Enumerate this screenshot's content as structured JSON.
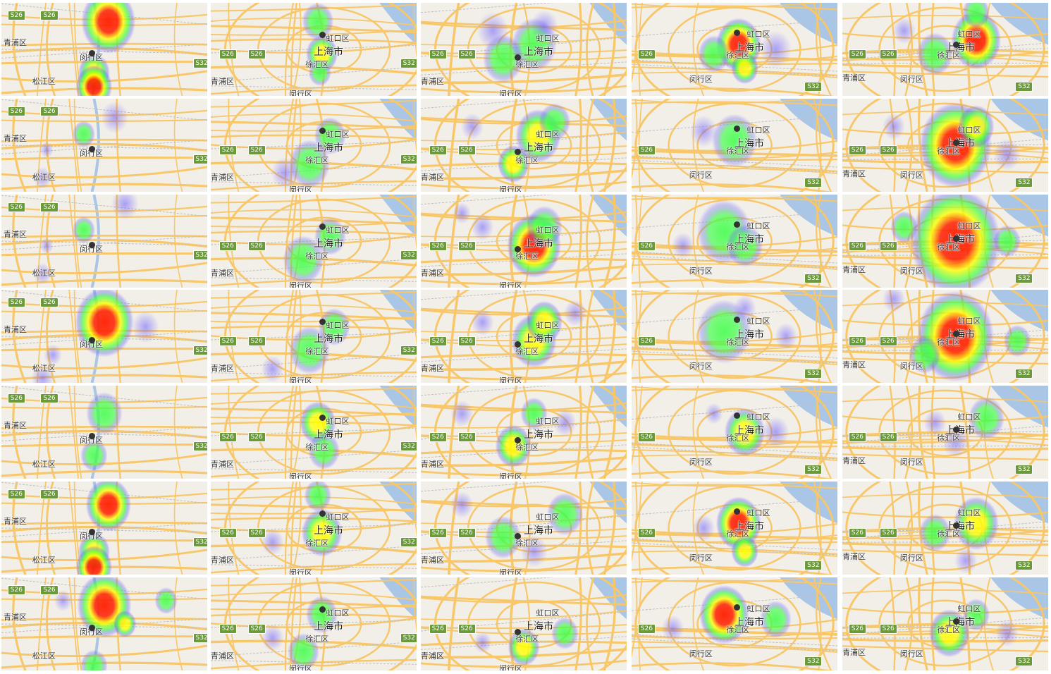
{
  "grid": {
    "rows": 7,
    "cols": 5
  },
  "labels": {
    "qingpu": "青浦区",
    "songjiang": "松江区",
    "minhang": "闵行区",
    "xuhui": "徐汇区",
    "hongkou": "虹口区",
    "shanghai": "上海市",
    "s26": "S26",
    "s32": "S32"
  },
  "colors": {
    "land": "#f2efe9",
    "water": "#aac6e6",
    "road": "#f7c76a",
    "heat_low": "#6b5cff",
    "heat_mid": "#3cff46",
    "heat_high": "#ffff00",
    "heat_peak": "#ff1e00"
  },
  "views": [
    {
      "map": "west",
      "labels": [
        "qingpu",
        "songjiang",
        "minhang",
        "s26",
        "s26",
        "s32"
      ],
      "note_marker": true
    },
    {
      "map": "center",
      "labels": [
        "qingpu",
        "minhang",
        "xuhui",
        "hongkou",
        "shanghai",
        "s26",
        "s26",
        "s32"
      ]
    },
    {
      "map": "center",
      "labels": [
        "qingpu",
        "minhang",
        "xuhui",
        "hongkou",
        "shanghai",
        "s26",
        "s26"
      ]
    },
    {
      "map": "east",
      "labels": [
        "minhang",
        "xuhui",
        "hongkou",
        "shanghai",
        "s26",
        "s32"
      ]
    },
    {
      "map": "east",
      "labels": [
        "qingpu",
        "minhang",
        "xuhui",
        "hongkou",
        "shanghai",
        "s26",
        "s26",
        "s32"
      ]
    }
  ],
  "cells": [
    {
      "row": 0,
      "col": 0,
      "view": 0,
      "marker": [
        0.44,
        0.54
      ],
      "blobs": [
        [
          0.52,
          0.2,
          0.12,
          0.9
        ],
        [
          0.45,
          0.75,
          0.07,
          0.6
        ],
        [
          0.45,
          0.9,
          0.08,
          0.85
        ]
      ]
    },
    {
      "row": 0,
      "col": 1,
      "view": 1,
      "marker": [
        0.54,
        0.34
      ],
      "blobs": [
        [
          0.52,
          0.2,
          0.07,
          0.5
        ],
        [
          0.54,
          0.55,
          0.07,
          0.7
        ],
        [
          0.53,
          0.75,
          0.05,
          0.4
        ]
      ]
    },
    {
      "row": 0,
      "col": 2,
      "view": 2,
      "marker": [
        0.47,
        0.58
      ],
      "blobs": [
        [
          0.4,
          0.6,
          0.09,
          0.5
        ],
        [
          0.55,
          0.45,
          0.1,
          0.45
        ],
        [
          0.35,
          0.3,
          0.07,
          0.3
        ],
        [
          0.6,
          0.25,
          0.06,
          0.3
        ]
      ]
    },
    {
      "row": 0,
      "col": 3,
      "view": 3,
      "marker": [
        0.51,
        0.32
      ],
      "blobs": [
        [
          0.52,
          0.45,
          0.1,
          0.85
        ],
        [
          0.55,
          0.7,
          0.06,
          0.6
        ],
        [
          0.4,
          0.55,
          0.07,
          0.35
        ],
        [
          0.7,
          0.5,
          0.07,
          0.3
        ]
      ]
    },
    {
      "row": 0,
      "col": 4,
      "view": 4,
      "marker": [
        0.55,
        0.45
      ],
      "blobs": [
        [
          0.65,
          0.4,
          0.11,
          0.8
        ],
        [
          0.45,
          0.55,
          0.08,
          0.5
        ],
        [
          0.3,
          0.3,
          0.05,
          0.3
        ],
        [
          0.65,
          0.1,
          0.06,
          0.4
        ]
      ]
    },
    {
      "row": 1,
      "col": 0,
      "view": 0,
      "marker": [
        0.44,
        0.54
      ],
      "blobs": [
        [
          0.4,
          0.38,
          0.05,
          0.35
        ],
        [
          0.55,
          0.2,
          0.06,
          0.25
        ],
        [
          0.22,
          0.55,
          0.03,
          0.2
        ],
        [
          0.2,
          0.85,
          0.04,
          0.2
        ]
      ]
    },
    {
      "row": 1,
      "col": 1,
      "view": 1,
      "marker": [
        0.54,
        0.34
      ],
      "blobs": [
        [
          0.58,
          0.4,
          0.07,
          0.4
        ],
        [
          0.48,
          0.7,
          0.09,
          0.4
        ],
        [
          0.36,
          0.8,
          0.06,
          0.3
        ]
      ]
    },
    {
      "row": 1,
      "col": 2,
      "view": 2,
      "marker": [
        0.47,
        0.57
      ],
      "blobs": [
        [
          0.57,
          0.4,
          0.1,
          0.65
        ],
        [
          0.45,
          0.7,
          0.07,
          0.6
        ],
        [
          0.65,
          0.25,
          0.07,
          0.4
        ],
        [
          0.25,
          0.3,
          0.05,
          0.3
        ]
      ]
    },
    {
      "row": 1,
      "col": 3,
      "view": 3,
      "marker": [
        0.51,
        0.32
      ],
      "blobs": [
        [
          0.5,
          0.45,
          0.1,
          0.45
        ],
        [
          0.35,
          0.35,
          0.06,
          0.3
        ]
      ]
    },
    {
      "row": 1,
      "col": 4,
      "view": 4,
      "marker": [
        0.55,
        0.47
      ],
      "blobs": [
        [
          0.55,
          0.5,
          0.16,
          0.9
        ],
        [
          0.65,
          0.3,
          0.08,
          0.6
        ],
        [
          0.25,
          0.3,
          0.05,
          0.3
        ],
        [
          0.8,
          0.6,
          0.06,
          0.3
        ]
      ]
    },
    {
      "row": 2,
      "col": 0,
      "view": 0,
      "marker": [
        0.44,
        0.54
      ],
      "blobs": [
        [
          0.4,
          0.38,
          0.05,
          0.35
        ],
        [
          0.6,
          0.1,
          0.06,
          0.25
        ],
        [
          0.22,
          0.55,
          0.03,
          0.2
        ],
        [
          0.2,
          0.85,
          0.04,
          0.2
        ]
      ]
    },
    {
      "row": 2,
      "col": 1,
      "view": 1,
      "marker": [
        0.54,
        0.34
      ],
      "blobs": [
        [
          0.58,
          0.45,
          0.07,
          0.4
        ],
        [
          0.45,
          0.7,
          0.09,
          0.4
        ]
      ]
    },
    {
      "row": 2,
      "col": 2,
      "view": 2,
      "marker": [
        0.47,
        0.58
      ],
      "blobs": [
        [
          0.55,
          0.55,
          0.12,
          0.85
        ],
        [
          0.6,
          0.35,
          0.08,
          0.5
        ],
        [
          0.3,
          0.35,
          0.05,
          0.3
        ],
        [
          0.2,
          0.2,
          0.04,
          0.25
        ]
      ]
    },
    {
      "row": 2,
      "col": 3,
      "view": 3,
      "marker": [
        0.51,
        0.32
      ],
      "blobs": [
        [
          0.45,
          0.4,
          0.12,
          0.45
        ],
        [
          0.55,
          0.55,
          0.08,
          0.35
        ],
        [
          0.25,
          0.55,
          0.05,
          0.25
        ]
      ]
    },
    {
      "row": 2,
      "col": 4,
      "view": 4,
      "marker": [
        0.55,
        0.47
      ],
      "blobs": [
        [
          0.55,
          0.5,
          0.2,
          1.0
        ],
        [
          0.3,
          0.35,
          0.06,
          0.35
        ],
        [
          0.8,
          0.5,
          0.06,
          0.35
        ]
      ]
    },
    {
      "row": 3,
      "col": 0,
      "view": 0,
      "marker": [
        0.44,
        0.54
      ],
      "blobs": [
        [
          0.5,
          0.35,
          0.13,
          0.8
        ],
        [
          0.25,
          0.7,
          0.04,
          0.25
        ],
        [
          0.2,
          0.95,
          0.05,
          0.3
        ],
        [
          0.7,
          0.4,
          0.06,
          0.3
        ]
      ]
    },
    {
      "row": 3,
      "col": 1,
      "view": 1,
      "marker": [
        0.54,
        0.34
      ],
      "blobs": [
        [
          0.6,
          0.4,
          0.07,
          0.4
        ],
        [
          0.48,
          0.65,
          0.09,
          0.4
        ],
        [
          0.3,
          0.85,
          0.05,
          0.25
        ]
      ]
    },
    {
      "row": 3,
      "col": 2,
      "view": 2,
      "marker": [
        0.47,
        0.58
      ],
      "blobs": [
        [
          0.55,
          0.55,
          0.1,
          0.7
        ],
        [
          0.6,
          0.35,
          0.08,
          0.55
        ],
        [
          0.3,
          0.35,
          0.05,
          0.3
        ],
        [
          0.75,
          0.25,
          0.05,
          0.3
        ]
      ]
    },
    {
      "row": 3,
      "col": 3,
      "view": 3,
      "marker": [
        0.51,
        0.32
      ],
      "blobs": [
        [
          0.45,
          0.45,
          0.12,
          0.5
        ],
        [
          0.55,
          0.2,
          0.05,
          0.3
        ],
        [
          0.75,
          0.5,
          0.05,
          0.25
        ]
      ]
    },
    {
      "row": 3,
      "col": 4,
      "view": 4,
      "marker": [
        0.55,
        0.47
      ],
      "blobs": [
        [
          0.55,
          0.5,
          0.17,
          0.95
        ],
        [
          0.25,
          0.1,
          0.05,
          0.3
        ],
        [
          0.85,
          0.55,
          0.06,
          0.35
        ],
        [
          0.4,
          0.7,
          0.07,
          0.4
        ]
      ]
    },
    {
      "row": 4,
      "col": 0,
      "view": 0,
      "marker": [
        0.44,
        0.54
      ],
      "blobs": [
        [
          0.5,
          0.3,
          0.08,
          0.5
        ],
        [
          0.45,
          0.75,
          0.06,
          0.5
        ]
      ]
    },
    {
      "row": 4,
      "col": 1,
      "view": 1,
      "marker": [
        0.54,
        0.34
      ],
      "blobs": [
        [
          0.52,
          0.4,
          0.08,
          0.55
        ],
        [
          0.55,
          0.7,
          0.07,
          0.5
        ]
      ]
    },
    {
      "row": 4,
      "col": 2,
      "view": 2,
      "marker": [
        0.47,
        0.58
      ],
      "blobs": [
        [
          0.45,
          0.65,
          0.08,
          0.55
        ],
        [
          0.55,
          0.3,
          0.06,
          0.35
        ],
        [
          0.2,
          0.3,
          0.05,
          0.3
        ],
        [
          0.7,
          0.4,
          0.05,
          0.3
        ]
      ]
    },
    {
      "row": 4,
      "col": 3,
      "view": 3,
      "marker": [
        0.51,
        0.32
      ],
      "blobs": [
        [
          0.55,
          0.5,
          0.09,
          0.6
        ],
        [
          0.7,
          0.5,
          0.06,
          0.3
        ],
        [
          0.4,
          0.3,
          0.04,
          0.25
        ]
      ]
    },
    {
      "row": 4,
      "col": 4,
      "view": 4,
      "marker": [
        0.55,
        0.47
      ],
      "blobs": [
        [
          0.7,
          0.35,
          0.08,
          0.5
        ],
        [
          0.55,
          0.6,
          0.06,
          0.3
        ],
        [
          0.45,
          0.4,
          0.05,
          0.25
        ]
      ]
    },
    {
      "row": 5,
      "col": 0,
      "view": 0,
      "marker": [
        0.44,
        0.54
      ],
      "blobs": [
        [
          0.52,
          0.25,
          0.1,
          0.9
        ],
        [
          0.45,
          0.75,
          0.07,
          0.6
        ],
        [
          0.45,
          0.92,
          0.08,
          0.85
        ]
      ]
    },
    {
      "row": 5,
      "col": 1,
      "view": 1,
      "marker": [
        0.54,
        0.34
      ],
      "blobs": [
        [
          0.54,
          0.55,
          0.09,
          0.75
        ],
        [
          0.52,
          0.15,
          0.06,
          0.45
        ],
        [
          0.3,
          0.65,
          0.05,
          0.25
        ]
      ]
    },
    {
      "row": 5,
      "col": 2,
      "view": 2,
      "marker": [
        0.47,
        0.58
      ],
      "blobs": [
        [
          0.4,
          0.6,
          0.08,
          0.45
        ],
        [
          0.7,
          0.35,
          0.08,
          0.4
        ],
        [
          0.55,
          0.75,
          0.06,
          0.3
        ],
        [
          0.2,
          0.25,
          0.05,
          0.25
        ]
      ]
    },
    {
      "row": 5,
      "col": 3,
      "view": 3,
      "marker": [
        0.51,
        0.32
      ],
      "blobs": [
        [
          0.52,
          0.45,
          0.1,
          0.85
        ],
        [
          0.55,
          0.75,
          0.06,
          0.55
        ],
        [
          0.35,
          0.5,
          0.05,
          0.3
        ]
      ]
    },
    {
      "row": 5,
      "col": 4,
      "view": 4,
      "marker": [
        0.55,
        0.47
      ],
      "blobs": [
        [
          0.65,
          0.45,
          0.1,
          0.75
        ],
        [
          0.45,
          0.55,
          0.07,
          0.5
        ],
        [
          0.6,
          0.85,
          0.05,
          0.3
        ]
      ]
    },
    {
      "row": 6,
      "col": 0,
      "view": 0,
      "marker": [
        0.44,
        0.54
      ],
      "blobs": [
        [
          0.5,
          0.3,
          0.12,
          0.85
        ],
        [
          0.8,
          0.25,
          0.05,
          0.4
        ],
        [
          0.6,
          0.5,
          0.05,
          0.6
        ],
        [
          0.45,
          0.95,
          0.06,
          0.35
        ],
        [
          0.3,
          0.25,
          0.04,
          0.3
        ]
      ]
    },
    {
      "row": 6,
      "col": 1,
      "view": 1,
      "marker": [
        0.54,
        0.34
      ],
      "blobs": [
        [
          0.54,
          0.4,
          0.07,
          0.5
        ],
        [
          0.45,
          0.8,
          0.07,
          0.35
        ],
        [
          0.3,
          0.65,
          0.05,
          0.25
        ]
      ]
    },
    {
      "row": 6,
      "col": 2,
      "view": 2,
      "marker": [
        0.47,
        0.58
      ],
      "blobs": [
        [
          0.5,
          0.75,
          0.07,
          0.7
        ],
        [
          0.7,
          0.6,
          0.06,
          0.4
        ],
        [
          0.3,
          0.7,
          0.04,
          0.3
        ]
      ]
    },
    {
      "row": 6,
      "col": 3,
      "view": 3,
      "marker": [
        0.51,
        0.32
      ],
      "blobs": [
        [
          0.45,
          0.4,
          0.11,
          0.85
        ],
        [
          0.7,
          0.45,
          0.07,
          0.4
        ],
        [
          0.2,
          0.55,
          0.05,
          0.3
        ]
      ]
    },
    {
      "row": 6,
      "col": 4,
      "view": 4,
      "marker": [
        0.55,
        0.47
      ],
      "blobs": [
        [
          0.52,
          0.6,
          0.09,
          0.75
        ],
        [
          0.65,
          0.4,
          0.06,
          0.45
        ],
        [
          0.8,
          0.6,
          0.05,
          0.3
        ]
      ]
    }
  ]
}
